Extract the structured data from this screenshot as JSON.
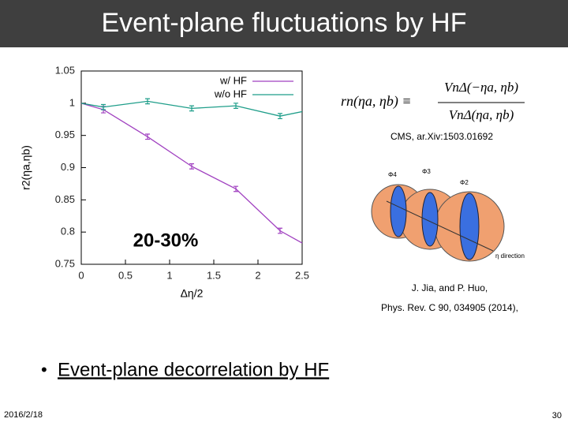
{
  "slide": {
    "title": "Event-plane fluctuations by HF",
    "bullet": "Event-plane decorrelation by HF",
    "date": "2016/2/18",
    "page": "30",
    "formula": {
      "lhs": "rn(ηa, ηb) ≡",
      "numerator": "VnΔ(−ηa, ηb)",
      "denominator": "VnΔ(ηa, ηb)"
    },
    "cms_ref": "CMS, ar.Xiv:1503.01692",
    "diagram_labels": [
      "Φ4",
      "Φ3",
      "Φ2",
      "η direction"
    ],
    "ref_lines": [
      "J. Jia, and P. Huo,",
      "Phys. Rev. C 90, 034905 (2014),"
    ]
  },
  "chart_data": {
    "type": "line",
    "x_label": "Δη/2",
    "y_label": "r2(ηa,ηb)",
    "annotation": "20-30%",
    "x": [
      0,
      0.25,
      0.75,
      1.25,
      1.75,
      2.25,
      2.5
    ],
    "series": [
      {
        "name": "w/ HF",
        "color": "#a040c0",
        "values": [
          1.0,
          0.99,
          0.948,
          0.902,
          0.867,
          0.802,
          0.783
        ],
        "errors": [
          null,
          0.005,
          0.004,
          0.004,
          0.004,
          0.004,
          null
        ]
      },
      {
        "name": "w/o HF",
        "color": "#1f9e8a",
        "values": [
          1.0,
          0.994,
          1.003,
          0.992,
          0.996,
          0.98,
          0.987
        ],
        "errors": [
          null,
          0.004,
          0.004,
          0.004,
          0.004,
          0.004,
          null
        ]
      }
    ],
    "xlim": [
      0,
      2.5
    ],
    "ylim": [
      0.75,
      1.05
    ],
    "xticks": [
      0,
      0.5,
      1,
      1.5,
      2,
      2.5
    ],
    "yticks": [
      0.75,
      0.8,
      0.85,
      0.9,
      0.95,
      1,
      1.05
    ],
    "legend": "upper right"
  }
}
